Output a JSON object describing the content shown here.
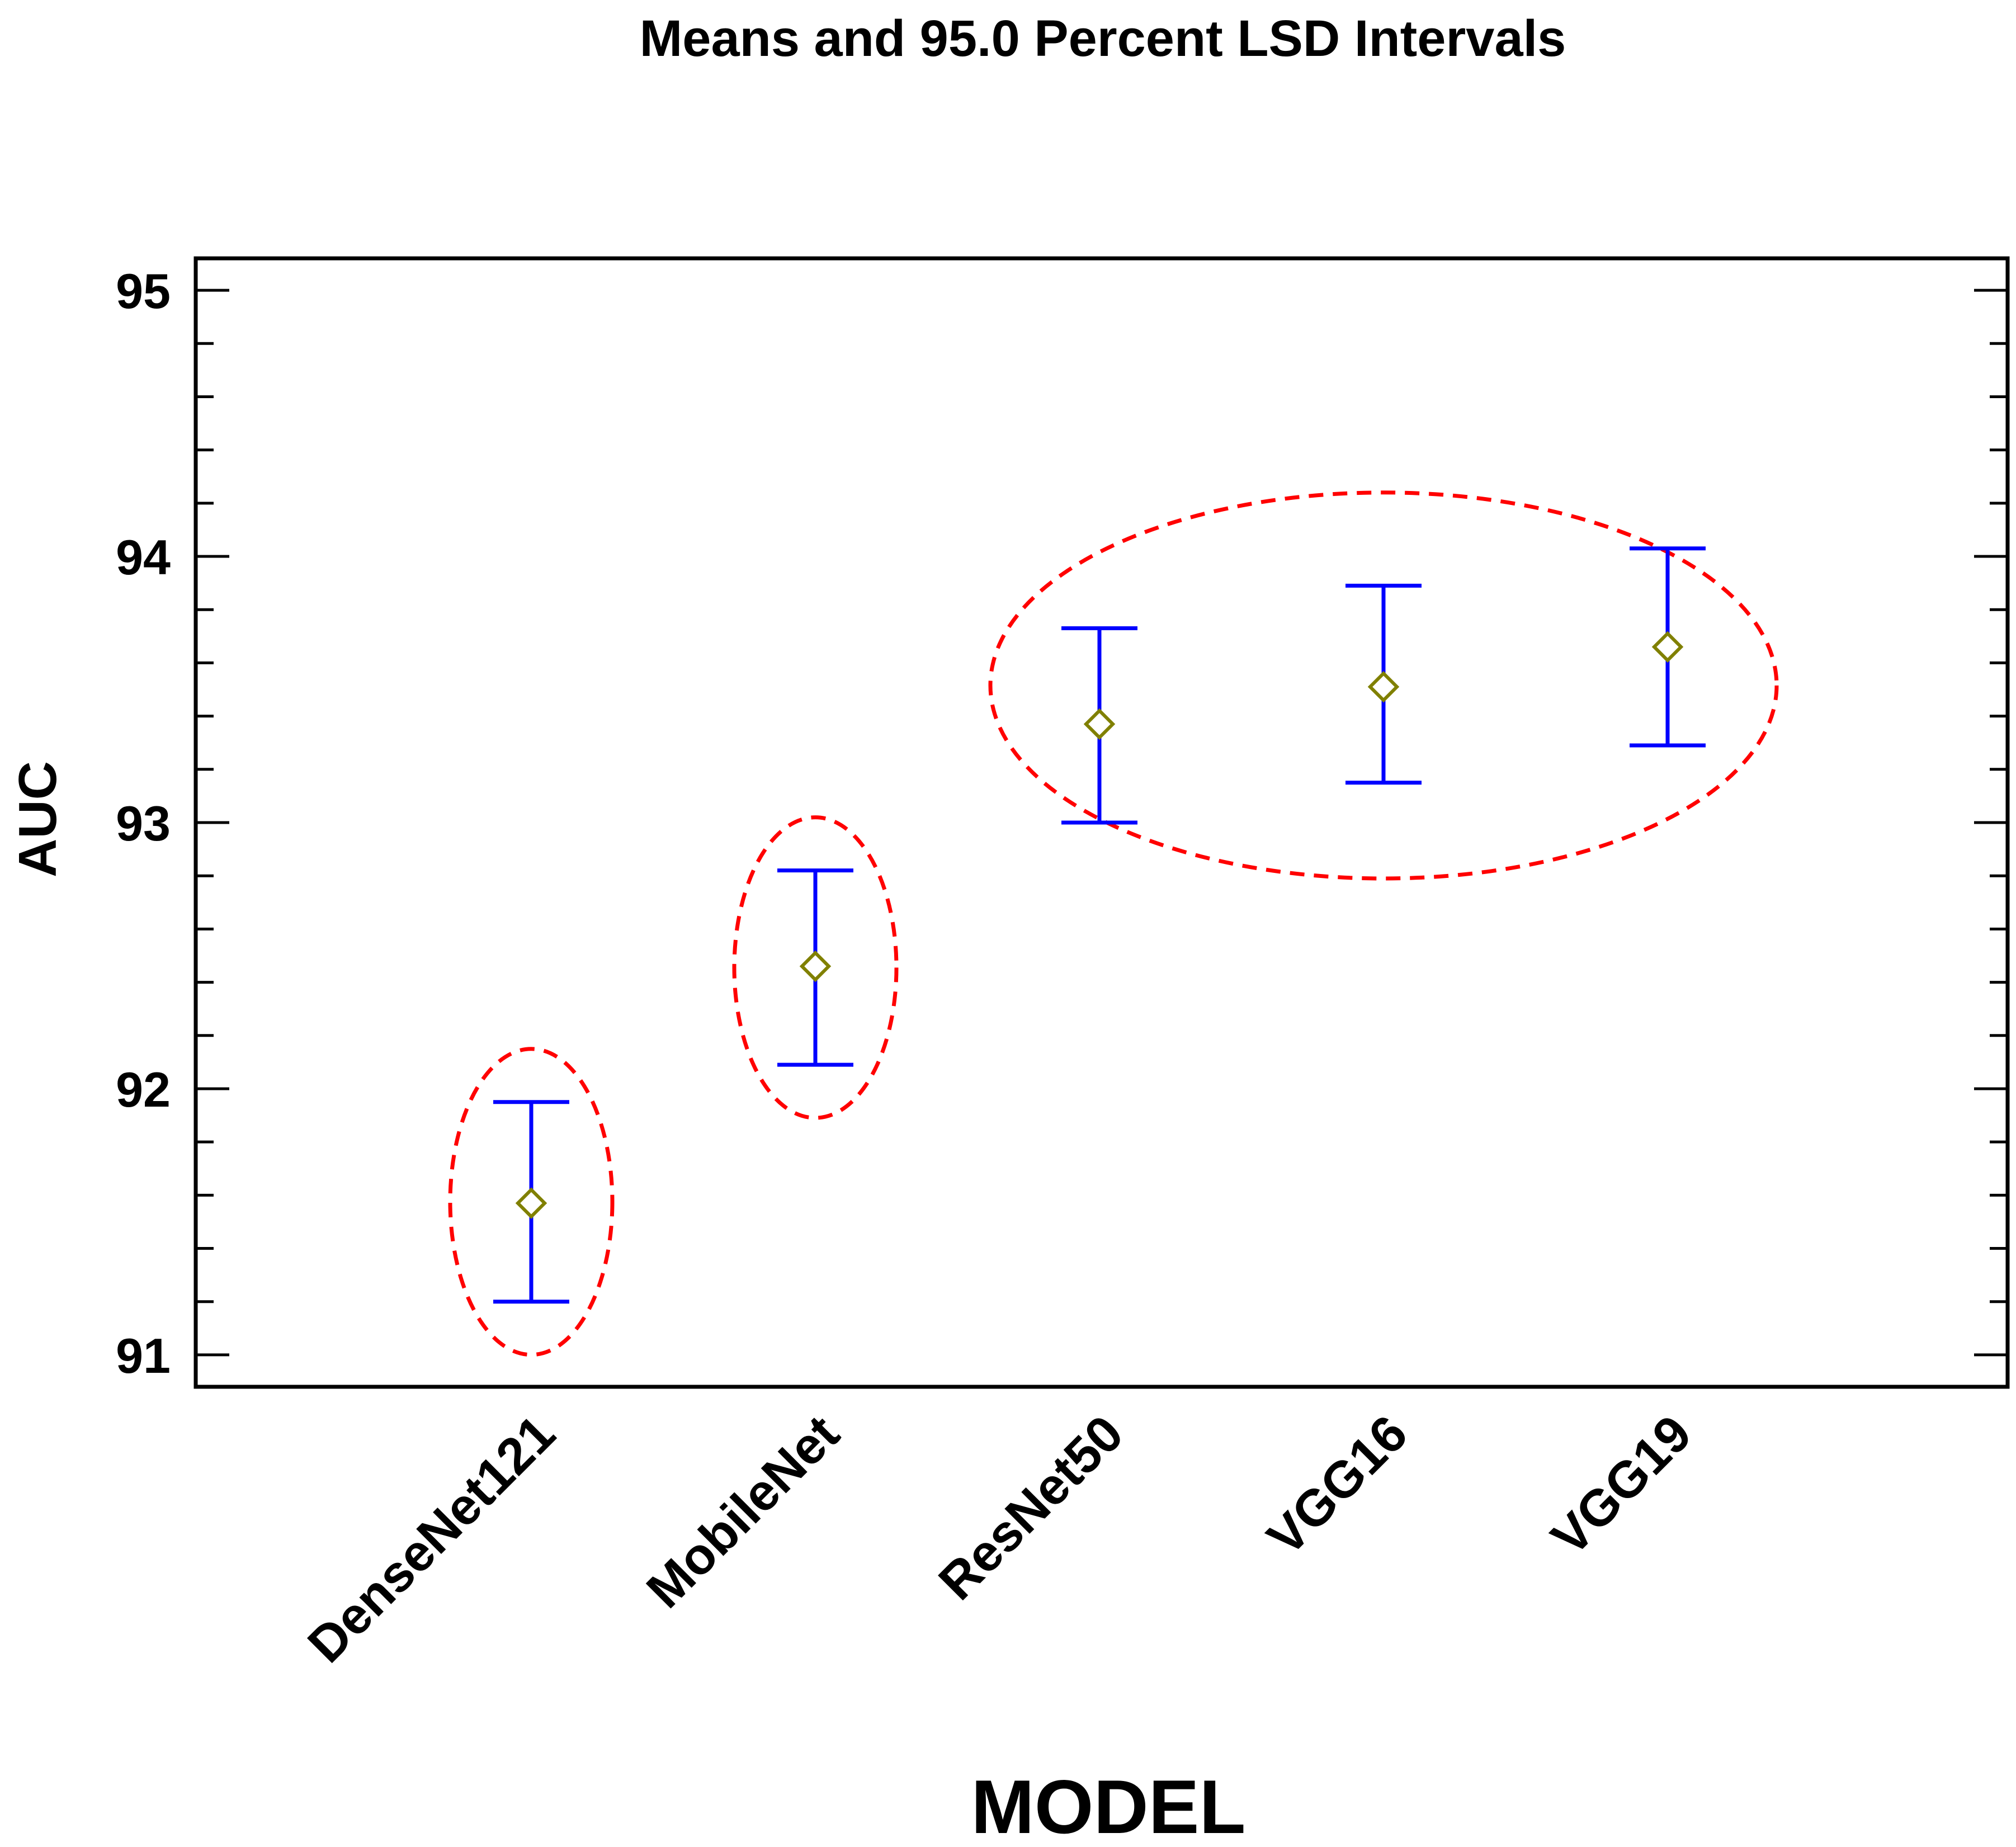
{
  "chart_data": {
    "type": "interval",
    "title": "Means and 95.0 Percent LSD Intervals",
    "xlabel": "MODEL",
    "ylabel": "AUC",
    "ylim": [
      90.88,
      95.12
    ],
    "yticks": [
      "91",
      "92",
      "93",
      "94",
      "95"
    ],
    "grid": false,
    "categories": [
      "DenseNet121",
      "MobileNet",
      "ResNet50",
      "VGG16",
      "VGG19"
    ],
    "means": [
      91.57,
      92.46,
      93.37,
      93.51,
      93.66
    ],
    "lower": [
      91.2,
      92.09,
      93.0,
      93.15,
      93.29
    ],
    "upper": [
      91.95,
      92.82,
      93.73,
      93.89,
      94.03
    ],
    "groups": [
      {
        "name": "group-1",
        "members": [
          "DenseNet121"
        ]
      },
      {
        "name": "group-2",
        "members": [
          "MobileNet"
        ]
      },
      {
        "name": "group-3",
        "members": [
          "ResNet50",
          "VGG16",
          "VGG19"
        ]
      }
    ],
    "colors": {
      "interval": "#0000ff",
      "mean_marker": "#808000",
      "group_ellipse": "#ff0000",
      "axes": "#000000"
    }
  }
}
